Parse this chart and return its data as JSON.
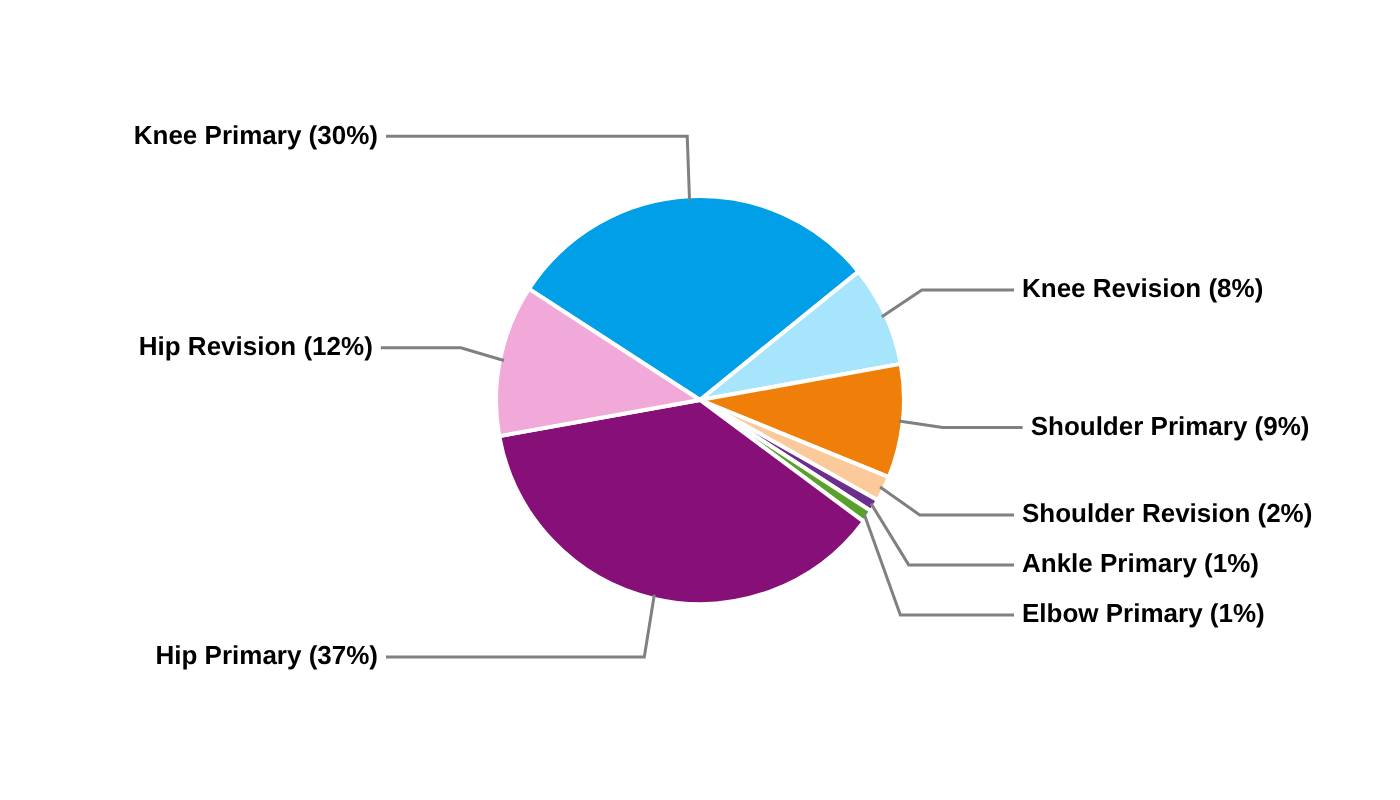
{
  "chart_data": {
    "type": "pie",
    "categories": [
      "Knee Primary (30%)",
      "Knee Revision (8%)",
      "Shoulder Primary (9%)",
      "Shoulder Revision (2%)",
      "Ankle Primary (1%)",
      "Elbow Primary (1%)",
      "Hip Primary (37%)",
      "Hip Revision (12%)"
    ],
    "values": [
      30,
      8,
      9,
      2,
      1,
      1,
      37,
      12
    ],
    "colors": [
      "#009fe8",
      "#a6e5fb",
      "#f07f0a",
      "#fcc99b",
      "#6b2d8e",
      "#5aa02c",
      "#861077",
      "#f0a9d8"
    ],
    "legend": false
  }
}
